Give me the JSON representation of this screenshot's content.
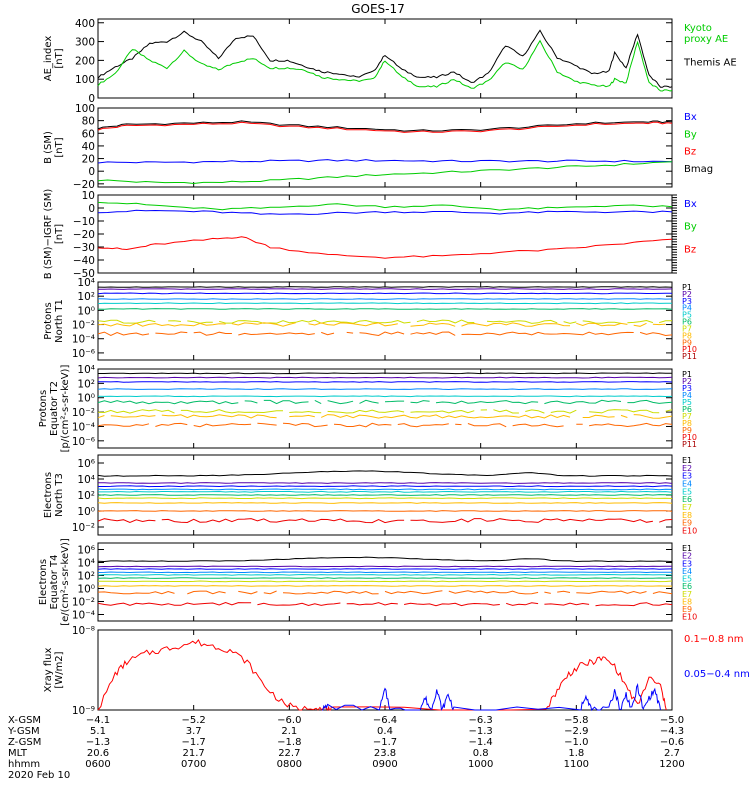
{
  "title": "GOES-17",
  "colors": {
    "black": "#000000",
    "green": "#00cc00",
    "blue": "#0000ff",
    "red": "#ff0000"
  },
  "chart_data": [
    {
      "type": "line",
      "id": "ae",
      "ylabel": "AE_index\n[nT]",
      "ylim": [
        0,
        420
      ],
      "ticks": [
        "400",
        "300",
        "200",
        "100",
        "0"
      ],
      "tickvals": [
        400,
        300,
        200,
        100,
        0
      ],
      "legend": [
        {
          "text": "Kyoto\nproxy AE",
          "color": "#00cc00"
        },
        {
          "text": "Themis AE",
          "color": "#000000"
        }
      ],
      "series": [
        {
          "name": "Themis AE",
          "color": "#000000",
          "x": [
            0,
            3,
            6,
            9,
            12,
            15,
            18,
            21,
            24,
            27,
            30,
            33,
            36,
            39,
            42,
            45,
            48,
            50,
            53,
            56,
            59,
            62,
            65,
            68,
            71,
            74,
            77,
            80,
            83,
            86,
            89,
            90,
            92,
            94,
            96,
            98,
            100
          ],
          "values": [
            110,
            165,
            210,
            290,
            300,
            350,
            300,
            210,
            320,
            330,
            200,
            200,
            170,
            140,
            130,
            110,
            140,
            230,
            150,
            110,
            110,
            140,
            80,
            130,
            280,
            220,
            355,
            215,
            175,
            130,
            140,
            240,
            160,
            340,
            120,
            60,
            60
          ]
        },
        {
          "name": "Kyoto proxy AE",
          "color": "#00cc00",
          "x": [
            0,
            3,
            6,
            9,
            12,
            15,
            18,
            21,
            24,
            27,
            30,
            33,
            36,
            39,
            42,
            45,
            48,
            50,
            53,
            56,
            59,
            62,
            65,
            68,
            71,
            74,
            77,
            80,
            83,
            86,
            89,
            90,
            92,
            94,
            96,
            98,
            100
          ],
          "values": [
            70,
            130,
            260,
            200,
            160,
            250,
            180,
            150,
            190,
            210,
            160,
            160,
            150,
            110,
            100,
            90,
            100,
            200,
            110,
            60,
            60,
            100,
            50,
            90,
            190,
            150,
            300,
            140,
            90,
            70,
            60,
            100,
            80,
            300,
            80,
            40,
            40
          ]
        }
      ]
    },
    {
      "type": "line",
      "id": "bsm",
      "ylabel": "B (SM)\n[nT]",
      "ylim": [
        -25,
        100
      ],
      "ticks": [
        "100",
        "80",
        "60",
        "40",
        "20",
        "0",
        "−20"
      ],
      "tickvals": [
        100,
        80,
        60,
        40,
        20,
        0,
        -20
      ],
      "legend": [
        {
          "text": "Bx",
          "color": "#0000ff"
        },
        {
          "text": "By",
          "color": "#00cc00"
        },
        {
          "text": "Bz",
          "color": "#ff0000"
        },
        {
          "text": "Bmag",
          "color": "#000000"
        }
      ],
      "series": [
        {
          "name": "Bmag",
          "color": "#000000",
          "x": [
            0,
            5,
            15,
            25,
            35,
            45,
            55,
            65,
            75,
            85,
            95,
            100
          ],
          "values": [
            68,
            74,
            76,
            78,
            72,
            68,
            64,
            65,
            70,
            76,
            78,
            78
          ]
        },
        {
          "name": "Bz",
          "color": "#ff0000",
          "x": [
            0,
            5,
            15,
            25,
            35,
            45,
            55,
            65,
            75,
            85,
            95,
            100
          ],
          "values": [
            66,
            72,
            74,
            76,
            70,
            66,
            62,
            63,
            68,
            74,
            76,
            76
          ]
        },
        {
          "name": "Bx",
          "color": "#0000ff",
          "x": [
            0,
            10,
            20,
            30,
            40,
            50,
            60,
            70,
            80,
            90,
            100
          ],
          "values": [
            14,
            14,
            15,
            16,
            17,
            17,
            16,
            16,
            16,
            16,
            15
          ]
        },
        {
          "name": "By",
          "color": "#00cc00",
          "x": [
            0,
            10,
            20,
            30,
            40,
            50,
            60,
            70,
            80,
            90,
            100
          ],
          "values": [
            -14,
            -18,
            -18,
            -15,
            -10,
            -5,
            -2,
            2,
            6,
            10,
            15
          ]
        }
      ]
    },
    {
      "type": "line",
      "id": "digrf",
      "ylabel": "B (SM)−IGRF (SM)\n[nT]",
      "ylim": [
        -50,
        10
      ],
      "ticks": [
        "10",
        "0",
        "−10",
        "−20",
        "−30",
        "−40",
        "−50"
      ],
      "tickvals": [
        10,
        0,
        -10,
        -20,
        -30,
        -40,
        -50
      ],
      "legend": [
        {
          "text": "Bx",
          "color": "#0000ff"
        },
        {
          "text": "By",
          "color": "#00cc00"
        },
        {
          "text": "Bz",
          "color": "#ff0000"
        }
      ],
      "series": [
        {
          "name": "By",
          "color": "#00cc00",
          "x": [
            0,
            10,
            20,
            30,
            40,
            50,
            60,
            70,
            80,
            90,
            100
          ],
          "values": [
            5,
            2,
            -1,
            0,
            3,
            1,
            2,
            -1,
            0,
            2,
            1
          ]
        },
        {
          "name": "Bx",
          "color": "#0000ff",
          "x": [
            0,
            10,
            20,
            30,
            40,
            50,
            60,
            70,
            80,
            90,
            100
          ],
          "values": [
            -3,
            -2,
            -3,
            -5,
            -4,
            -3,
            -3,
            -4,
            -3,
            -3,
            -3
          ]
        },
        {
          "name": "Bz",
          "color": "#ff0000",
          "x": [
            0,
            5,
            10,
            20,
            25,
            30,
            40,
            50,
            60,
            70,
            80,
            90,
            100
          ],
          "values": [
            -30,
            -32,
            -28,
            -24,
            -22,
            -30,
            -36,
            -38,
            -37,
            -34,
            -32,
            -28,
            -24
          ]
        }
      ]
    },
    {
      "type": "line",
      "id": "pn",
      "ylabel": "Protons\nNorth T1",
      "log": true,
      "ylim": [
        -7,
        4
      ],
      "ticks": [
        "10⁴",
        "10²",
        "10⁰",
        "10⁻²",
        "10⁻⁴",
        "10⁻⁶"
      ],
      "tickvals": [
        4,
        2,
        0,
        -2,
        -4,
        -6
      ],
      "channels": [
        "P1",
        "P2",
        "P3",
        "P4",
        "P5",
        "P6",
        "P7",
        "P8",
        "P9",
        "P10",
        "P11"
      ],
      "channel_colors": [
        "#000000",
        "#5500aa",
        "#0000ff",
        "#0088ff",
        "#00cccc",
        "#00bb66",
        "#ccdd00",
        "#ffbb00",
        "#ff6600",
        "#ee0000",
        "#aa0000"
      ],
      "levels": [
        3.3,
        3.0,
        2.4,
        1.6,
        1.0,
        0.2,
        -1.6,
        -2.0,
        -3.3,
        null,
        null
      ]
    },
    {
      "type": "line",
      "id": "pe",
      "ylabel": "Protons\nEquator T2\n[p/(cm²-s-sr-keV)]",
      "log": true,
      "ylim": [
        -7,
        4
      ],
      "ticks": [
        "10⁴",
        "10²",
        "10⁰",
        "10⁻²",
        "10⁻⁴",
        "10⁻⁶"
      ],
      "tickvals": [
        4,
        2,
        0,
        -2,
        -4,
        -6
      ],
      "channels": [
        "P1",
        "P2",
        "P3",
        "P4",
        "P5",
        "P6",
        "P7",
        "P8",
        "P9",
        "P10",
        "P11"
      ],
      "channel_colors": [
        "#000000",
        "#5500aa",
        "#0000ff",
        "#0088ff",
        "#00cccc",
        "#00bb66",
        "#ccdd00",
        "#ffbb00",
        "#ff6600",
        "#ee0000",
        "#aa0000"
      ],
      "levels": [
        3.4,
        2.8,
        2.2,
        1.2,
        0.2,
        -0.6,
        -1.9,
        -2.6,
        -3.8,
        null,
        null
      ]
    },
    {
      "type": "line",
      "id": "en",
      "ylabel": "Electrons\nNorth T3",
      "log": true,
      "ylim": [
        -3,
        7
      ],
      "ticks": [
        "10⁶",
        "10⁴",
        "10²",
        "10⁰",
        "10⁻²"
      ],
      "tickvals": [
        6,
        4,
        2,
        0,
        -2
      ],
      "channels": [
        "E1",
        "E2",
        "E3",
        "E4",
        "E5",
        "E6",
        "E7",
        "E8",
        "E9",
        "E10"
      ],
      "channel_colors": [
        "#000000",
        "#5500aa",
        "#0000ff",
        "#0088ff",
        "#00cccc",
        "#00bb66",
        "#ccdd00",
        "#ffbb00",
        "#ff6600",
        "#ee0000"
      ],
      "levels": [
        4.4,
        3.5,
        3.1,
        2.7,
        2.4,
        2.0,
        1.6,
        1.0,
        0.0,
        -1.2
      ]
    },
    {
      "type": "line",
      "id": "ee",
      "ylabel": "Electrons\nEquator T4\n[e/(cm²-s-sr-keV)]",
      "log": true,
      "ylim": [
        -5,
        7
      ],
      "ticks": [
        "10⁶",
        "10⁴",
        "10²",
        "10⁰",
        "10⁻²",
        "10⁻⁴"
      ],
      "tickvals": [
        6,
        4,
        2,
        0,
        -2,
        -4
      ],
      "channels": [
        "E1",
        "E2",
        "E3",
        "E4",
        "E5",
        "E6",
        "E7",
        "E8",
        "E9",
        "E10"
      ],
      "channel_colors": [
        "#000000",
        "#5500aa",
        "#0000ff",
        "#0088ff",
        "#00cccc",
        "#00bb66",
        "#ccdd00",
        "#ffbb00",
        "#ff6600",
        "#ee0000"
      ],
      "levels": [
        4.2,
        3.4,
        3.0,
        2.5,
        2.1,
        1.6,
        1.1,
        0.4,
        -0.6,
        -2.4
      ]
    },
    {
      "type": "line",
      "id": "xray",
      "ylabel": "Xray flux\n[W/m2]",
      "log": true,
      "ylim": [
        -9,
        -8
      ],
      "ticks": [
        "10⁻⁸",
        "10⁻⁹"
      ],
      "tickvals": [
        -8,
        -9
      ],
      "legend": [
        {
          "text": "0.1−0.8 nm",
          "color": "#ff0000"
        },
        {
          "text": "0.05−0.4 nm",
          "color": "#0000ff"
        }
      ],
      "series": [
        {
          "name": "0.1-0.8 nm",
          "color": "#ff0000",
          "x": [
            0,
            3,
            5,
            8,
            11,
            14,
            17,
            20,
            23,
            26,
            29,
            32,
            35,
            38,
            40,
            41,
            78,
            80,
            82,
            84,
            86,
            88,
            90,
            92,
            94,
            96,
            98,
            99
          ],
          "values": [
            -9.0,
            -8.55,
            -8.4,
            -8.3,
            -8.25,
            -8.2,
            -8.15,
            -8.2,
            -8.25,
            -8.4,
            -8.7,
            -8.9,
            -9.0,
            -8.95,
            -9.0,
            -9.0,
            -9.0,
            -8.75,
            -8.55,
            -8.45,
            -8.4,
            -8.35,
            -8.45,
            -8.7,
            -8.95,
            -8.6,
            -8.7,
            -9.0
          ]
        },
        {
          "name": "0.05-0.4 nm",
          "color": "#0000ff",
          "x": [
            39,
            40,
            49,
            50,
            51,
            56,
            57,
            58,
            59,
            60,
            61,
            62,
            84,
            85,
            86,
            89,
            90,
            91,
            92,
            93,
            94,
            95,
            96,
            97,
            98
          ],
          "values": [
            -9.0,
            -8.95,
            -9.0,
            -8.75,
            -9.0,
            -9.0,
            -8.85,
            -9.0,
            -8.75,
            -9.0,
            -8.8,
            -9.0,
            -9.0,
            -8.8,
            -9.0,
            -9.0,
            -8.75,
            -9.0,
            -8.8,
            -9.0,
            -8.7,
            -9.0,
            -8.85,
            -8.75,
            -9.0
          ]
        }
      ]
    }
  ],
  "axis_table": {
    "row_labels": [
      "X-GSM",
      "Y-GSM",
      "Z-GSM",
      "MLT",
      "hhmm"
    ],
    "columns": [
      [
        "−4.1",
        "5.1",
        "−1.3",
        "20.6",
        "0600"
      ],
      [
        "−5.2",
        "3.7",
        "−1.7",
        "21.7",
        "0700"
      ],
      [
        "−6.0",
        "2.1",
        "−1.8",
        "22.7",
        "0800"
      ],
      [
        "−6.4",
        "0.4",
        "−1.7",
        "23.8",
        "0900"
      ],
      [
        "−6.3",
        "−1.3",
        "−1.4",
        "0.8",
        "1000"
      ],
      [
        "−5.8",
        "−2.9",
        "−1.0",
        "1.8",
        "1100"
      ],
      [
        "−5.0",
        "−4.3",
        "−0.6",
        "2.7",
        "1200"
      ]
    ],
    "date": "2020 Feb 10"
  }
}
